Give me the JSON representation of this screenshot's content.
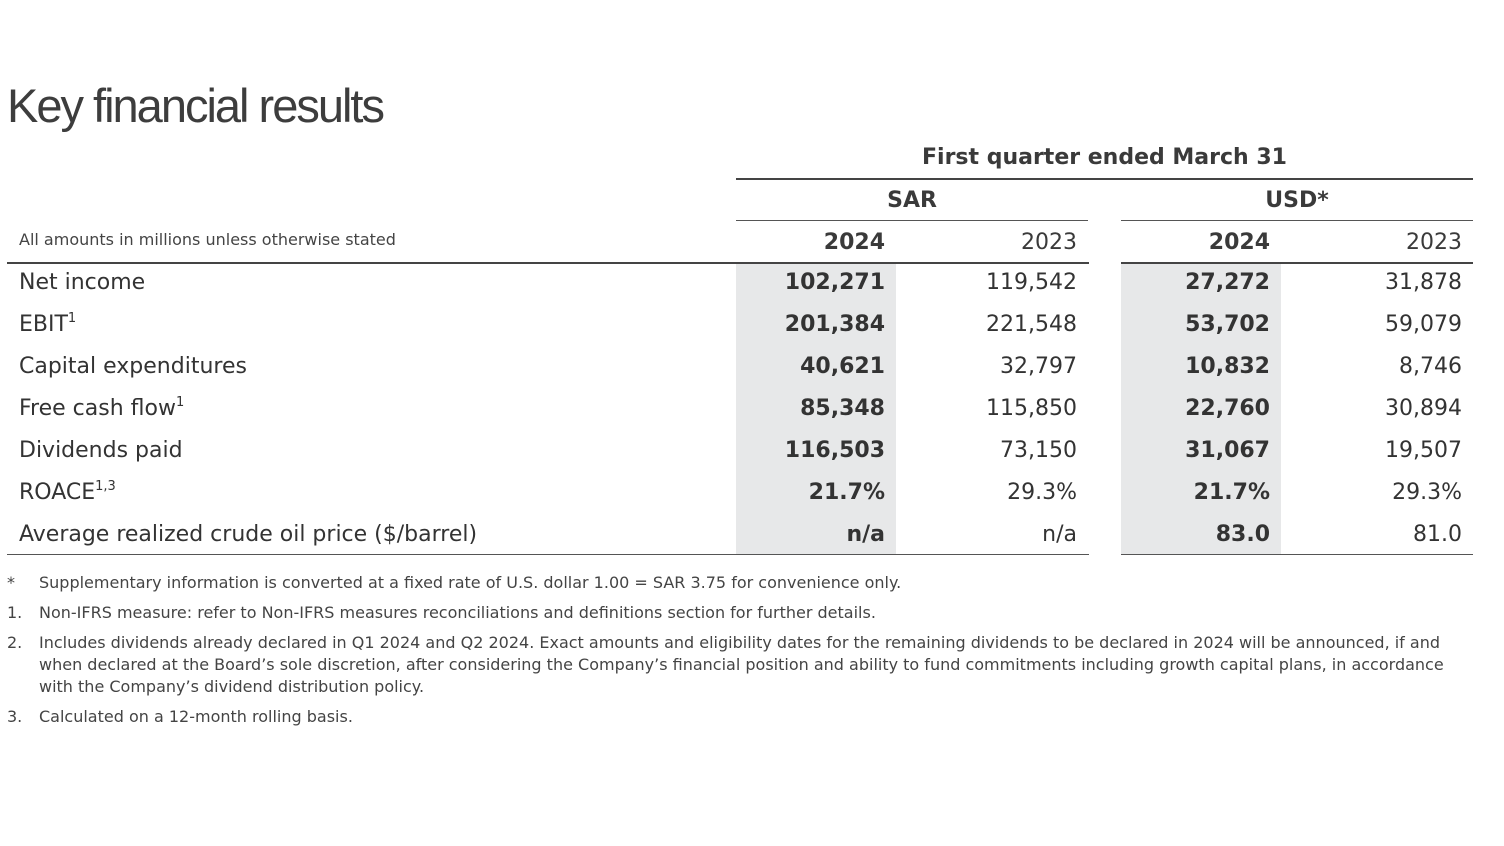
{
  "title": "Key financial results",
  "period_header": "First quarter ended March 31",
  "units_note": "All amounts in millions unless otherwise stated",
  "currencies": {
    "sar": "SAR",
    "usd": "USD*"
  },
  "years": {
    "sar_current": "2024",
    "sar_prior": "2023",
    "usd_current": "2024",
    "usd_prior": "2023"
  },
  "rows": [
    {
      "label": "Net income",
      "sup": "",
      "sar_2024": "102,271",
      "sar_2023": "119,542",
      "usd_2024": "27,272",
      "usd_2023": "31,878"
    },
    {
      "label": "EBIT",
      "sup": "1",
      "sar_2024": "201,384",
      "sar_2023": "221,548",
      "usd_2024": "53,702",
      "usd_2023": "59,079"
    },
    {
      "label": "Capital expenditures",
      "sup": "",
      "sar_2024": "40,621",
      "sar_2023": "32,797",
      "usd_2024": "10,832",
      "usd_2023": "8,746"
    },
    {
      "label": "Free cash flow",
      "sup": "1",
      "sar_2024": "85,348",
      "sar_2023": "115,850",
      "usd_2024": "22,760",
      "usd_2023": "30,894"
    },
    {
      "label": "Dividends paid",
      "sup": "",
      "sar_2024": "116,503",
      "sar_2023": "73,150",
      "usd_2024": "31,067",
      "usd_2023": "19,507"
    },
    {
      "label": "ROACE",
      "sup": "1,3",
      "sar_2024": "21.7%",
      "sar_2023": "29.3%",
      "usd_2024": "21.7%",
      "usd_2023": "29.3%"
    },
    {
      "label": "Average realized crude oil price ($/barrel)",
      "sup": "",
      "sar_2024": "n/a",
      "sar_2023": "n/a",
      "usd_2024": "83.0",
      "usd_2023": "81.0"
    }
  ],
  "footnotes": [
    {
      "marker": "*",
      "text": "Supplementary information is converted at a fixed rate of U.S. dollar 1.00 = SAR 3.75 for convenience only."
    },
    {
      "marker": "1.",
      "text": "Non-IFRS measure: refer to Non-IFRS measures reconciliations and definitions section for further details."
    },
    {
      "marker": "2.",
      "text": "Includes dividends already declared in Q1 2024 and Q2 2024. Exact amounts and eligibility dates for the remaining dividends to be declared in 2024 will be announced, if and when declared at the Board’s sole discretion, after considering the Company’s financial position and ability to fund commitments including growth capital plans, in accordance with the Company’s dividend distribution policy."
    },
    {
      "marker": "3.",
      "text": "Calculated on a 12-month rolling basis."
    }
  ]
}
